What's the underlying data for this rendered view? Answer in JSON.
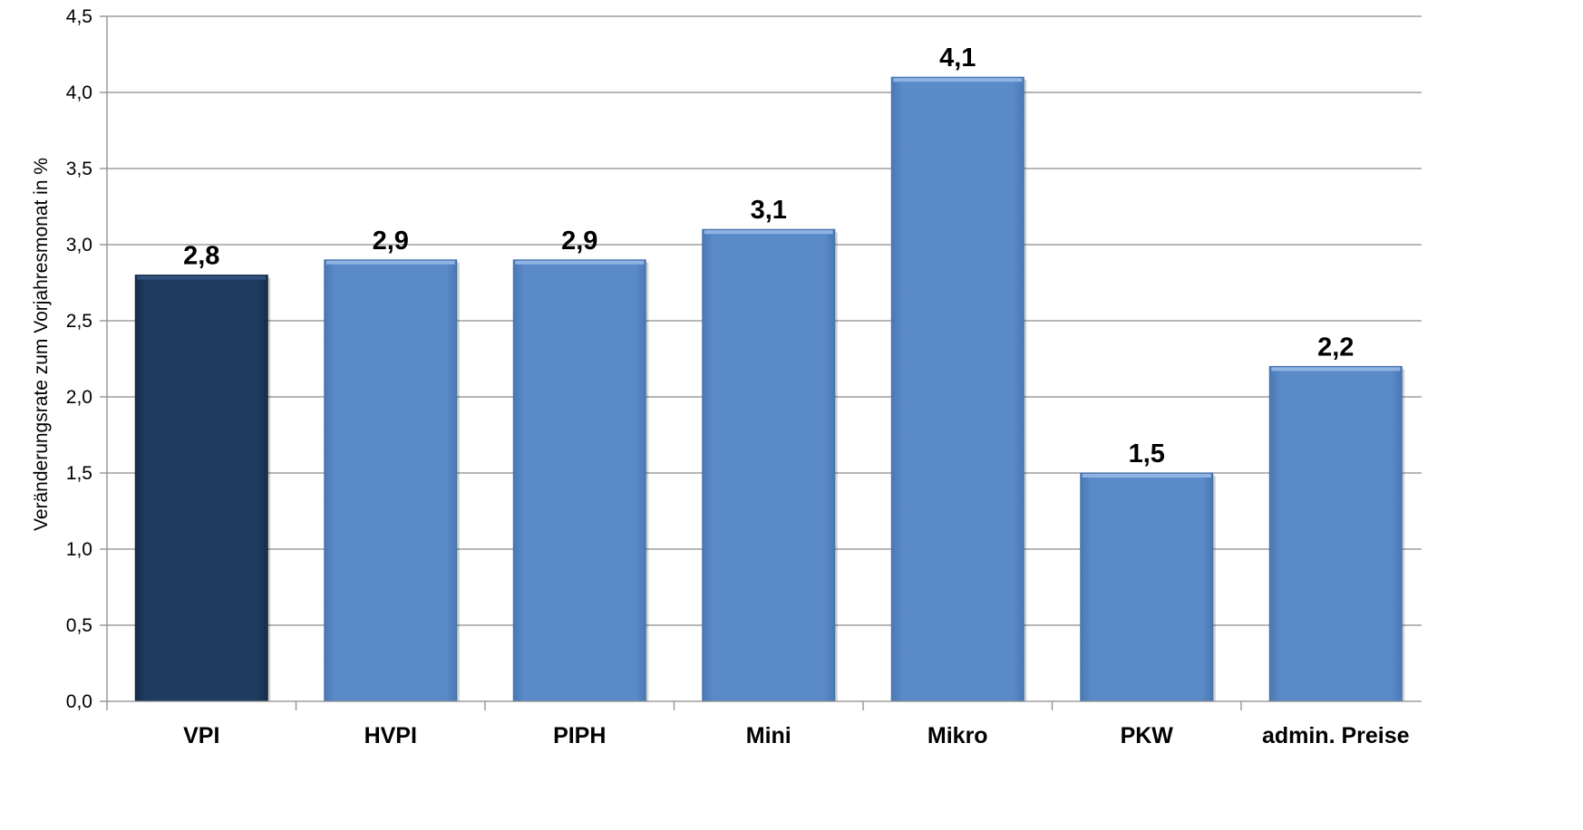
{
  "chart_data": {
    "type": "bar",
    "categories": [
      "VPI",
      "HVPI",
      "PIPH",
      "Mini",
      "Mikro",
      "PKW",
      "admin. Preise"
    ],
    "values": [
      2.8,
      2.9,
      2.9,
      3.1,
      4.1,
      1.5,
      2.2
    ],
    "value_labels": [
      "2,8",
      "2,9",
      "2,9",
      "3,1",
      "4,1",
      "1,5",
      "2,2"
    ],
    "ylabel": "Veränderungsrate zum Vorjahresmonat in %",
    "xlabel": "",
    "ylim": [
      0,
      4.5
    ],
    "yticks": [
      "0,0",
      "0,5",
      "1,0",
      "1,5",
      "2,0",
      "2,5",
      "3,0",
      "3,5",
      "4,0",
      "4,5"
    ],
    "grid": true,
    "legend": "none",
    "colors": {
      "highlight": "#1f3b5e",
      "bar": "#5a8ac8",
      "grid": "#8c8c8c"
    }
  }
}
